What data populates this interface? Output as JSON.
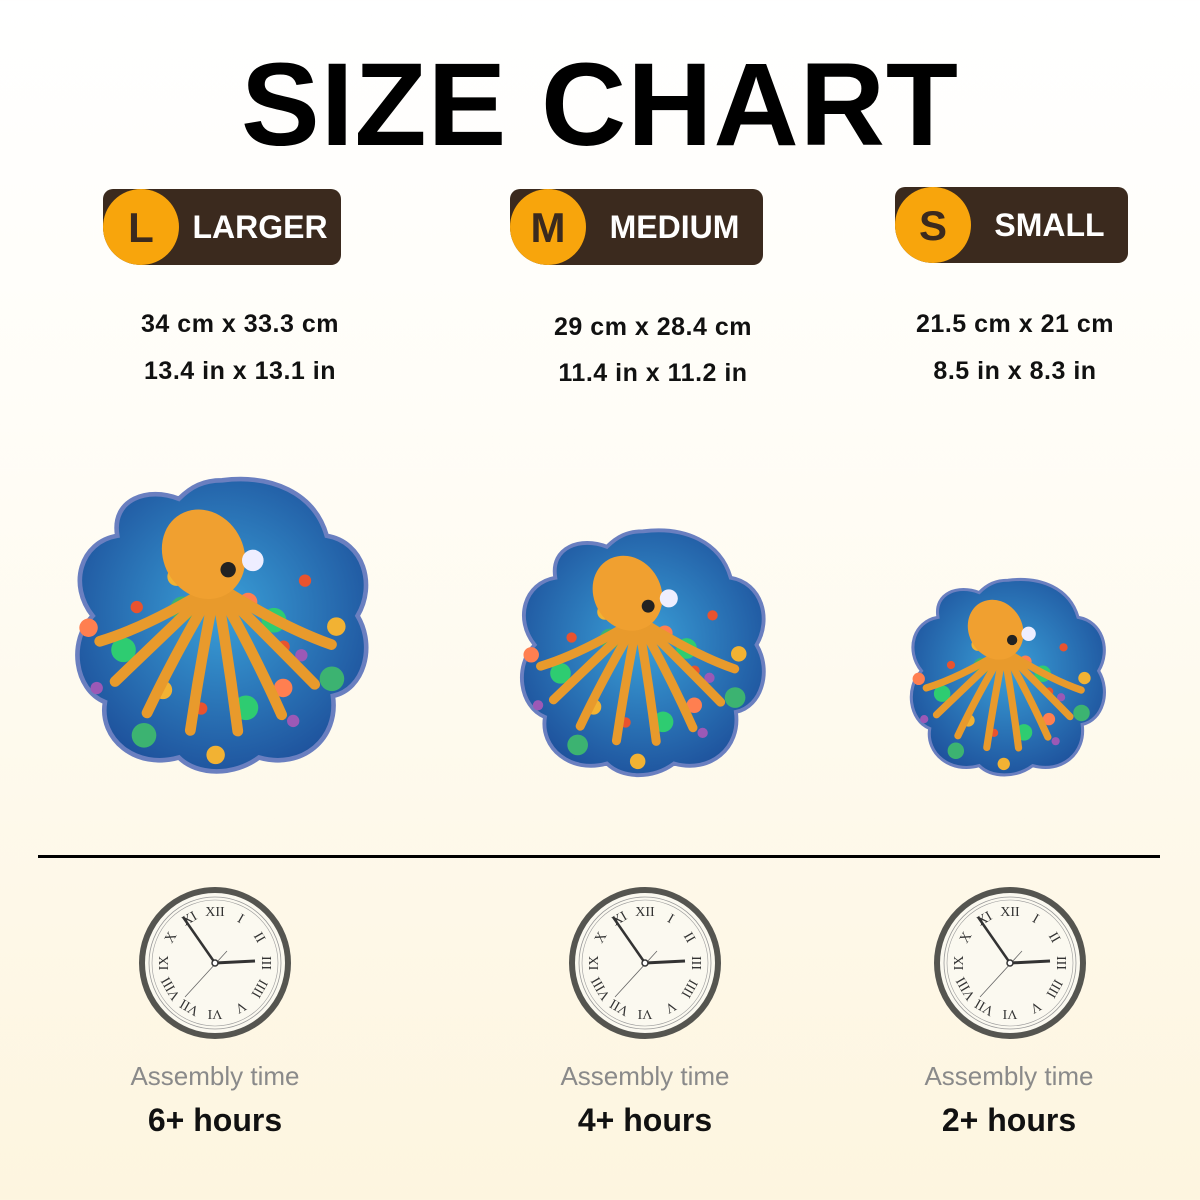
{
  "title": "SIZE CHART",
  "colors": {
    "badge_bg": "#3b2a1e",
    "badge_circle": "#f8a50c",
    "clock_ring": "#555550"
  },
  "clock": {
    "numerals": [
      "XII",
      "I",
      "II",
      "III",
      "IIII",
      "V",
      "VI",
      "VII",
      "VIII",
      "IX",
      "X",
      "XI"
    ]
  },
  "sizes": [
    {
      "letter": "L",
      "label": "LARGER",
      "cm": "34 cm x 33.3 cm",
      "in": "13.4 in x 13.1 in",
      "assembly_label": "Assembly time",
      "hours": "6+ hours",
      "image": "octopus-puzzle-large"
    },
    {
      "letter": "M",
      "label": "MEDIUM",
      "cm": "29 cm x 28.4 cm",
      "in": "11.4 in x 11.2 in",
      "assembly_label": "Assembly time",
      "hours": "4+ hours",
      "image": "octopus-puzzle-medium"
    },
    {
      "letter": "S",
      "label": "SMALL",
      "cm": "21.5 cm x 21 cm",
      "in": "8.5 in x 8.3 in",
      "assembly_label": "Assembly time",
      "hours": "2+ hours",
      "image": "octopus-puzzle-small"
    }
  ]
}
